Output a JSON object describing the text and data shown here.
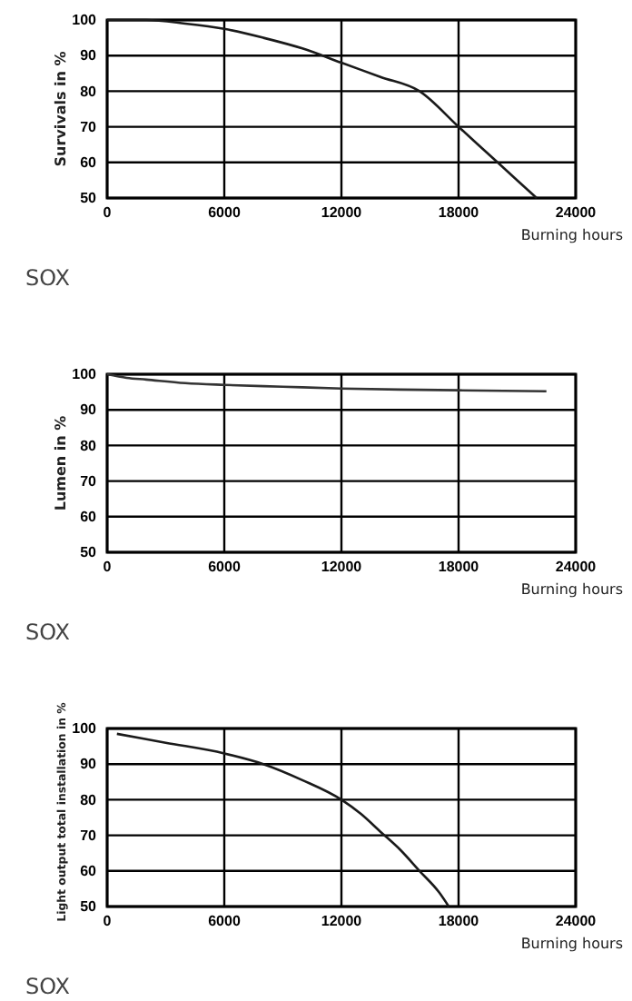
{
  "chart_data": [
    {
      "type": "line",
      "ylabel": "Survivals in %",
      "xlabel": "Burning hours",
      "annotations": [
        "SOX"
      ],
      "xlim": [
        0,
        24000
      ],
      "ylim": [
        50,
        100
      ],
      "xticks": [
        0,
        6000,
        12000,
        18000,
        24000
      ],
      "yticks": [
        50,
        60,
        70,
        80,
        90,
        100
      ],
      "grid": true,
      "series": [
        {
          "color": "#1a1a1a",
          "x": [
            0,
            2000,
            4000,
            6000,
            8000,
            10000,
            12000,
            14000,
            16000,
            18000,
            20000,
            22000
          ],
          "values": [
            100,
            100,
            99,
            97.5,
            95,
            92,
            88,
            84,
            80,
            70,
            60,
            50
          ]
        }
      ]
    },
    {
      "type": "line",
      "ylabel": "Lumen in %",
      "xlabel": "Burning hours",
      "annotations": [
        "SOX"
      ],
      "xlim": [
        0,
        24000
      ],
      "ylim": [
        50,
        100
      ],
      "xticks": [
        0,
        6000,
        12000,
        18000,
        24000
      ],
      "yticks": [
        50,
        60,
        70,
        80,
        90,
        100
      ],
      "grid": true,
      "series": [
        {
          "color": "#333333",
          "x": [
            0,
            1000,
            2000,
            4000,
            6000,
            9000,
            12000,
            15000,
            18000,
            22500
          ],
          "values": [
            100,
            99,
            98.5,
            97.5,
            97,
            96.5,
            96,
            95.7,
            95.5,
            95.2
          ]
        }
      ]
    },
    {
      "type": "line",
      "ylabel": "Light output total installation in %",
      "xlabel": "Burning hours",
      "annotations": [
        "SOX"
      ],
      "xlim": [
        0,
        24000
      ],
      "ylim": [
        50,
        100
      ],
      "xticks": [
        0,
        6000,
        12000,
        18000,
        24000
      ],
      "yticks": [
        50,
        60,
        70,
        80,
        90,
        100
      ],
      "grid": true,
      "series": [
        {
          "color": "#1a1a1a",
          "x": [
            500,
            3000,
            6000,
            8000,
            10000,
            12000,
            13000,
            14000,
            15000,
            16000,
            17000,
            17500
          ],
          "values": [
            98.5,
            96,
            93,
            90,
            85.5,
            80,
            76,
            71,
            66,
            60,
            54,
            50
          ]
        }
      ]
    }
  ]
}
